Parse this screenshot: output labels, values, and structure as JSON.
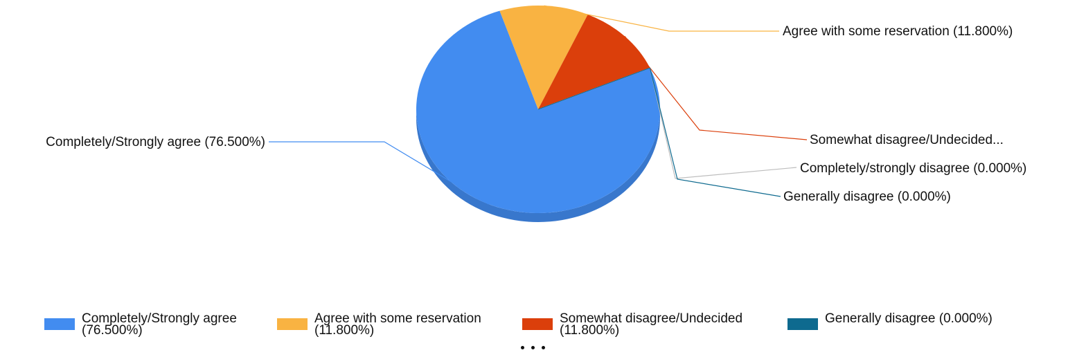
{
  "chart_data": {
    "type": "pie",
    "title": "",
    "slices": [
      {
        "name": "Completely/Strongly agree",
        "value": 76.5,
        "label": "Completely/Strongly agree (76.500%)",
        "color": "#428CF0"
      },
      {
        "name": "Agree with some reservation",
        "value": 11.8,
        "label": "Agree with some reservation (11.800%)",
        "color": "#F9B342"
      },
      {
        "name": "Somewhat disagree/Undecided",
        "value": 11.8,
        "label": "Somewhat disagree/Undecided...",
        "color": "#DB3F0B"
      },
      {
        "name": "Completely/strongly disagree",
        "value": 0.0,
        "label": "Completely/strongly disagree (0.000%)",
        "color": "#C8C8C8"
      },
      {
        "name": "Generally disagree",
        "value": 0.0,
        "label": "Generally disagree (0.000%)",
        "color": "#0E6A8F"
      }
    ],
    "legend": {
      "placement": "bottom",
      "items": [
        {
          "label": "Completely/Strongly agree\n(76.500%)",
          "color": "#428CF0"
        },
        {
          "label": "Agree with some reservation\n(11.800%)",
          "color": "#F9B342"
        },
        {
          "label": "Somewhat disagree/Undecided\n(11.800%)",
          "color": "#DB3F0B"
        },
        {
          "label": "Generally disagree (0.000%)",
          "color": "#0E6A8F"
        }
      ]
    }
  }
}
